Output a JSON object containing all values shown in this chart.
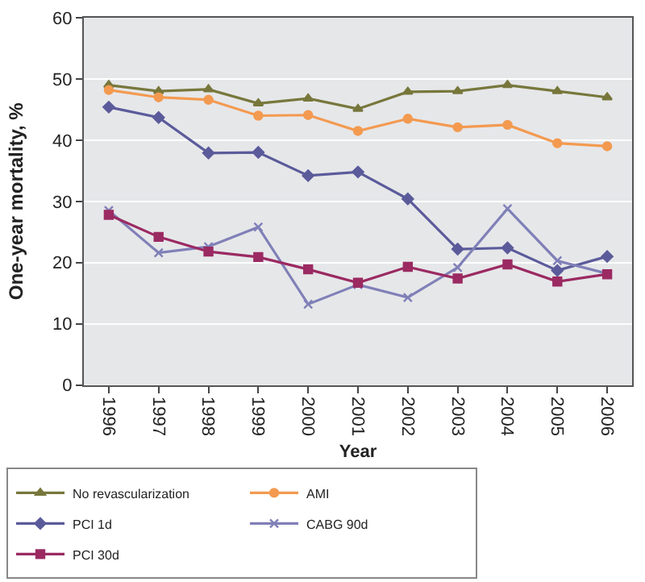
{
  "chart_data": {
    "type": "line",
    "xlabel": "Year",
    "ylabel": "One-year mortality, %",
    "categories": [
      "1996",
      "1997",
      "1998",
      "1999",
      "2000",
      "2001",
      "2002",
      "2003",
      "2004",
      "2005",
      "2006"
    ],
    "ylim": [
      0,
      60
    ],
    "yticks": [
      0,
      10,
      20,
      30,
      40,
      50,
      60
    ],
    "grid": "y",
    "legend": "bottom left",
    "line_style": "solid",
    "series": [
      {
        "name": "No revascularization",
        "color": "#77773c",
        "marker": "triangle",
        "values": [
          49,
          48,
          48.3,
          46,
          46.8,
          45.1,
          47.9,
          48,
          49,
          48,
          47
        ]
      },
      {
        "name": "AMI",
        "color": "#f39a50",
        "marker": "circle",
        "values": [
          48.2,
          47,
          46.6,
          44,
          44.1,
          41.5,
          43.5,
          42.1,
          42.5,
          39.5,
          39
        ]
      },
      {
        "name": "PCI 1d",
        "color": "#5b5b9b",
        "marker": "diamond",
        "values": [
          45.4,
          43.7,
          37.9,
          38,
          34.2,
          34.8,
          30.4,
          22.2,
          22.4,
          18.7,
          21
        ]
      },
      {
        "name": "CABG 90d",
        "color": "#8080b8",
        "marker": "cross",
        "values": [
          28.5,
          21.6,
          22.6,
          25.8,
          13.2,
          16.4,
          14.3,
          19.2,
          28.8,
          20.3,
          18.2
        ]
      },
      {
        "name": "PCI 30d",
        "color": "#9b2a62",
        "marker": "square",
        "values": [
          27.8,
          24.2,
          21.8,
          20.9,
          18.9,
          16.7,
          19.3,
          17.4,
          19.7,
          16.9,
          18.1
        ]
      }
    ]
  }
}
